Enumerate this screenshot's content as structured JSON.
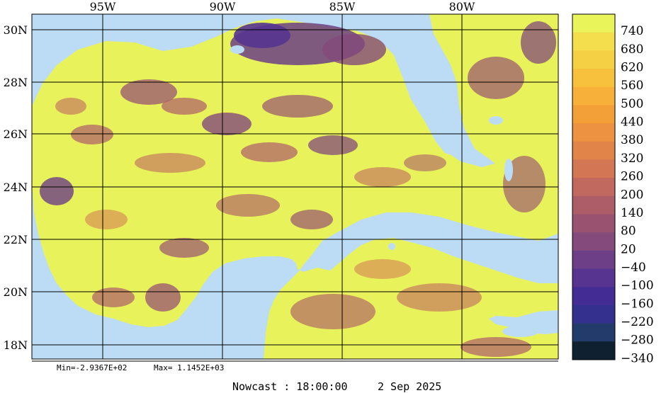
{
  "map": {
    "longitude_labels": [
      "95W",
      "90W",
      "85W",
      "80W"
    ],
    "latitude_labels": [
      "30N",
      "28N",
      "26N",
      "24N",
      "22N",
      "20N",
      "18N"
    ],
    "colors": {
      "ocean": "#bcdcf6",
      "land": "#e8f25a",
      "grid": "#000000"
    }
  },
  "stats": {
    "min_label": "Min=-2.9367E+02",
    "max_label": "Max= 1.1452E+03"
  },
  "footer": {
    "nowcast_label": "Nowcast : 18:00:00",
    "date_label": "2 Sep 2025"
  },
  "legend": {
    "labels": [
      "740",
      "680",
      "620",
      "560",
      "500",
      "440",
      "380",
      "320",
      "260",
      "200",
      "140",
      "80",
      "20",
      "−40",
      "−100",
      "−160",
      "−220",
      "−280",
      "−340"
    ],
    "colors": [
      "#e9f45a",
      "#f4de4d",
      "#f5d044",
      "#f7c13d",
      "#f7b13a",
      "#f3a038",
      "#ec9240",
      "#e1844a",
      "#d27654",
      "#c1685f",
      "#ad5d68",
      "#995371",
      "#834a7b",
      "#6c3f86",
      "#563490",
      "#432d94",
      "#34318e",
      "#233b6a",
      "#0f2030"
    ]
  }
}
